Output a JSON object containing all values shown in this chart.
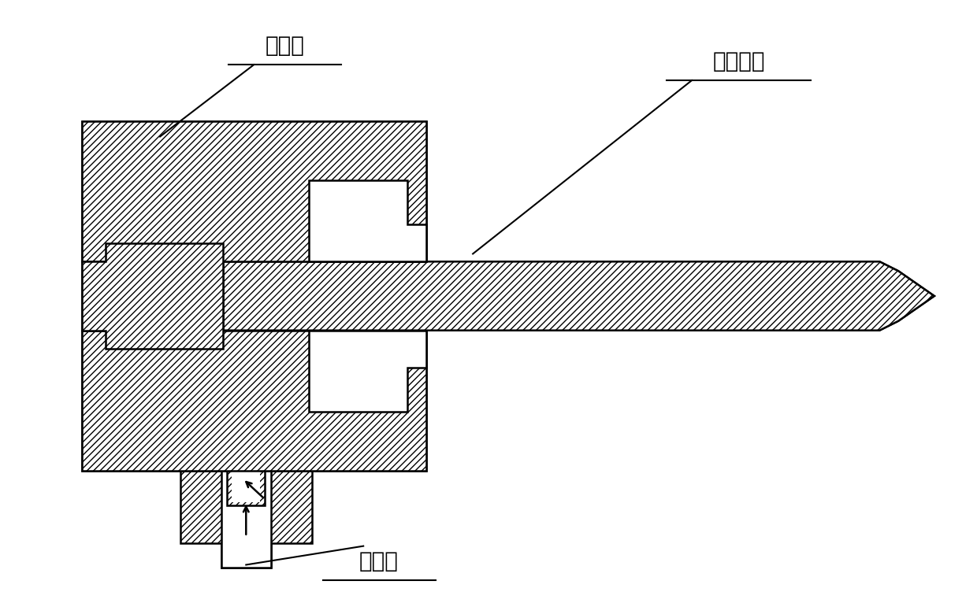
{
  "label_yangji": "阳极体",
  "label_bangzhuang": "棒状电极",
  "label_jinqikong": "进气孔",
  "bg_color": "#ffffff",
  "line_color": "#000000",
  "lw": 1.8,
  "font_size": 20,
  "fig_w": 12.4,
  "fig_h": 7.52,
  "dpi": 100
}
